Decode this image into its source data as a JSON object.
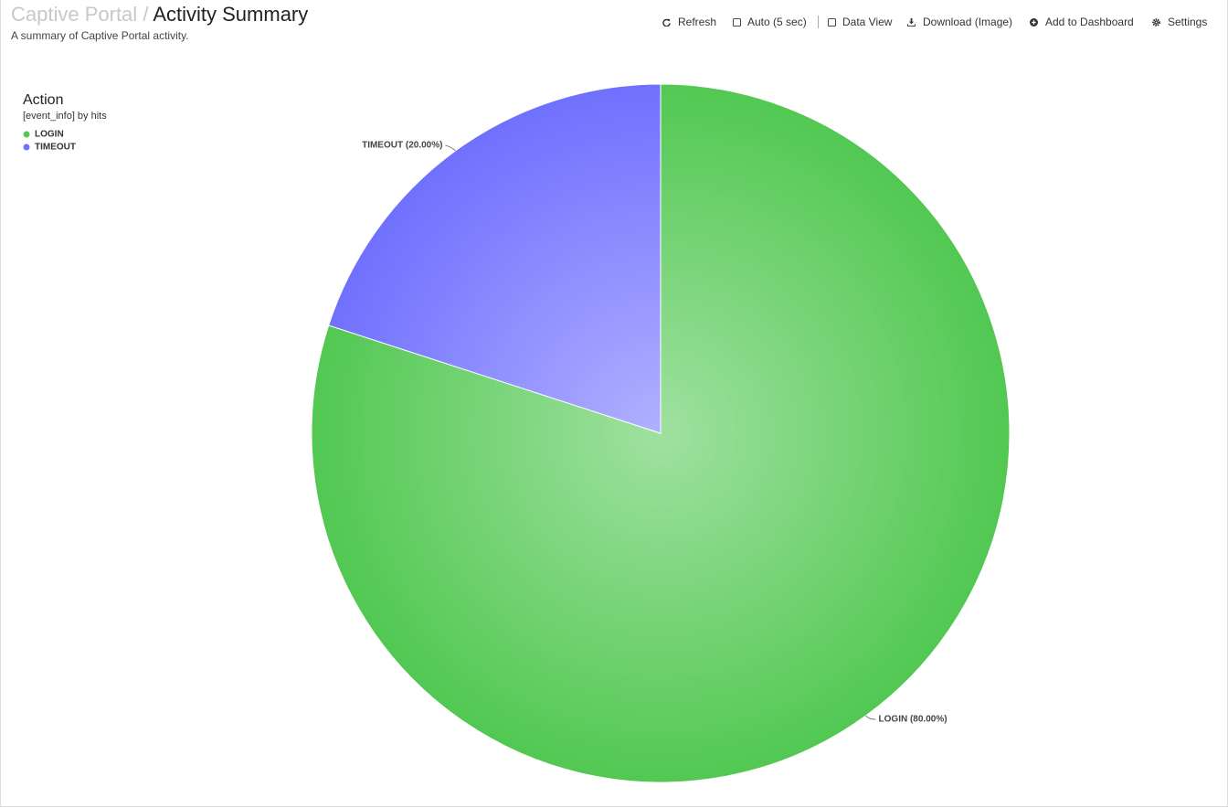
{
  "header": {
    "parent": "Captive Portal",
    "separator": "/",
    "title": "Activity Summary",
    "description": "A summary of Captive Portal activity."
  },
  "toolbar": {
    "refresh": "Refresh",
    "auto": "Auto (5 sec)",
    "data_view": "Data View",
    "download": "Download (Image)",
    "add_to_dashboard": "Add to Dashboard",
    "settings": "Settings"
  },
  "chart_data": {
    "type": "pie",
    "title": "Action",
    "subtitle": "[event_info] by hits",
    "categories": [
      "LOGIN",
      "TIMEOUT"
    ],
    "values": [
      80,
      20
    ],
    "value_labels": [
      "LOGIN (80.00%)",
      "TIMEOUT (20.00%)"
    ],
    "colors": [
      "#52c852",
      "#7070ff"
    ],
    "legend": "top-left"
  }
}
